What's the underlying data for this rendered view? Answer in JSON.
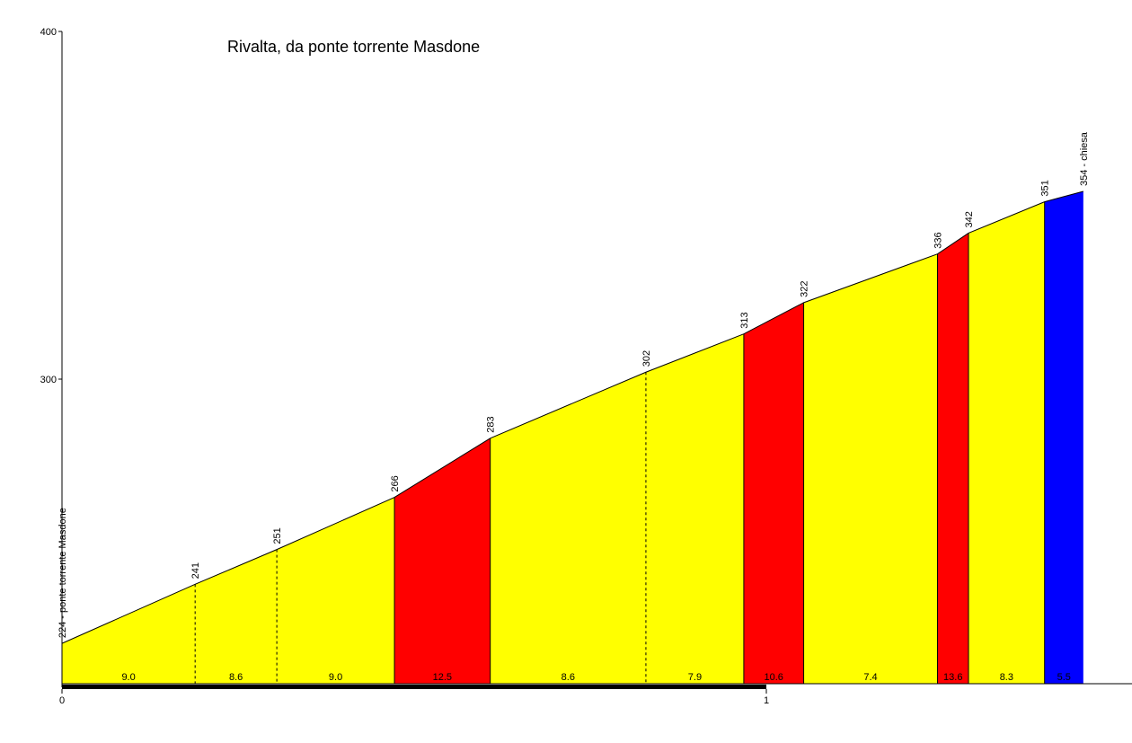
{
  "chart_data": {
    "type": "area",
    "title": "Rivalta, da ponte torrente Masdone",
    "xlabel": "",
    "ylabel": "",
    "ylim": [
      190,
      400
    ],
    "y_ticks": [
      "300",
      "400"
    ],
    "x_ticks": [
      "0",
      "1"
    ],
    "colors": {
      "background": "#ffffff",
      "moderate": "#ffff00",
      "steep": "#ff0000",
      "final": "#0000ff",
      "line": "#000000",
      "km_bar": "#000000"
    },
    "points": [
      {
        "km": 0.0,
        "alt": 224,
        "label": "224 - ponte torrente Masdone"
      },
      {
        "km": 0.189,
        "alt": 241,
        "label": "241"
      },
      {
        "km": 0.305,
        "alt": 251,
        "label": "251"
      },
      {
        "km": 0.472,
        "alt": 266,
        "label": "266"
      },
      {
        "km": 0.608,
        "alt": 283,
        "label": "283"
      },
      {
        "km": 0.829,
        "alt": 302,
        "label": "302"
      },
      {
        "km": 0.968,
        "alt": 313,
        "label": "313"
      },
      {
        "km": 1.053,
        "alt": 322,
        "label": "322"
      },
      {
        "km": 1.243,
        "alt": 336,
        "label": "336"
      },
      {
        "km": 1.287,
        "alt": 342,
        "label": "342"
      },
      {
        "km": 1.395,
        "alt": 351,
        "label": "351"
      },
      {
        "km": 1.45,
        "alt": 354,
        "label": "354 - chiesa"
      }
    ],
    "segments": [
      {
        "gradient": "9.0",
        "category": "moderate",
        "divider": "dashed"
      },
      {
        "gradient": "8.6",
        "category": "moderate",
        "divider": "dashed"
      },
      {
        "gradient": "9.0",
        "category": "moderate",
        "divider": "solid"
      },
      {
        "gradient": "12.5",
        "category": "steep",
        "divider": "solid"
      },
      {
        "gradient": "8.6",
        "category": "moderate",
        "divider": "dashed"
      },
      {
        "gradient": "7.9",
        "category": "moderate",
        "divider": "solid"
      },
      {
        "gradient": "10.6",
        "category": "steep",
        "divider": "solid"
      },
      {
        "gradient": "7.4",
        "category": "moderate",
        "divider": "solid"
      },
      {
        "gradient": "13.6",
        "category": "steep",
        "divider": "solid"
      },
      {
        "gradient": "8.3",
        "category": "moderate",
        "divider": "solid"
      },
      {
        "gradient": "5.5",
        "category": "final",
        "divider": "none"
      }
    ]
  }
}
